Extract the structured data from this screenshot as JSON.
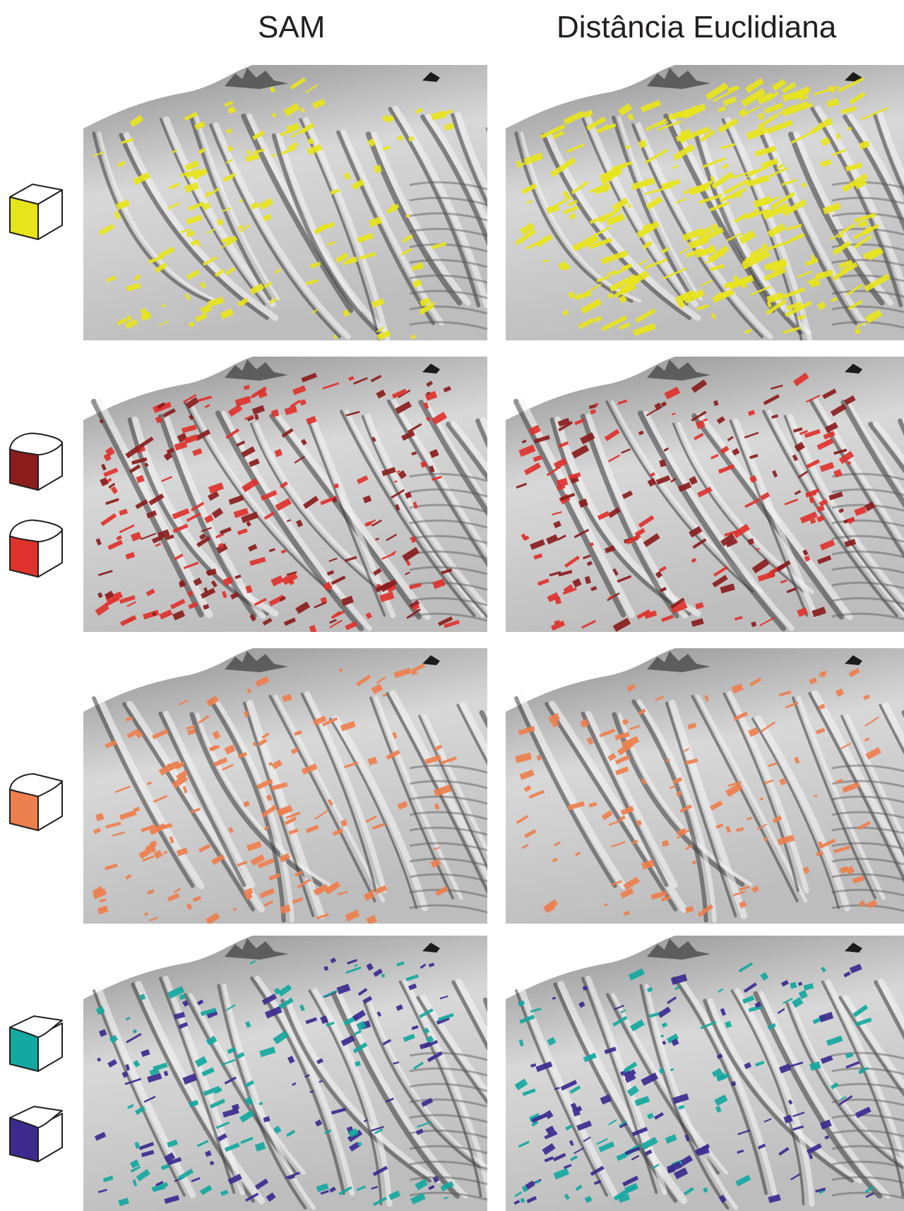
{
  "columns": [
    {
      "title": "SAM"
    },
    {
      "title": "Distância Euclidiana"
    }
  ],
  "rows": [
    {
      "classes": [
        {
          "icon": "cube-yellow-flat-icon",
          "color": "#e8e41c",
          "top_shape": "flat"
        }
      ]
    },
    {
      "classes": [
        {
          "icon": "cube-darkred-convex-icon",
          "color": "#8b1d1d",
          "top_shape": "convex"
        },
        {
          "icon": "cube-red-convex-icon",
          "color": "#e0322c",
          "top_shape": "convex"
        }
      ]
    },
    {
      "classes": [
        {
          "icon": "cube-orange-convex-concave-icon",
          "color": "#ee7f4e",
          "top_shape": "wave"
        }
      ]
    },
    {
      "classes": [
        {
          "icon": "cube-teal-concave-icon",
          "color": "#13a8a0",
          "top_shape": "concave"
        },
        {
          "icon": "cube-navy-concave-icon",
          "color": "#3c2a8f",
          "top_shape": "concave"
        }
      ]
    }
  ],
  "colors": {
    "terrain_light": "#e6e6e6",
    "terrain_dark": "#5a5a5a",
    "title": "#231f20"
  }
}
